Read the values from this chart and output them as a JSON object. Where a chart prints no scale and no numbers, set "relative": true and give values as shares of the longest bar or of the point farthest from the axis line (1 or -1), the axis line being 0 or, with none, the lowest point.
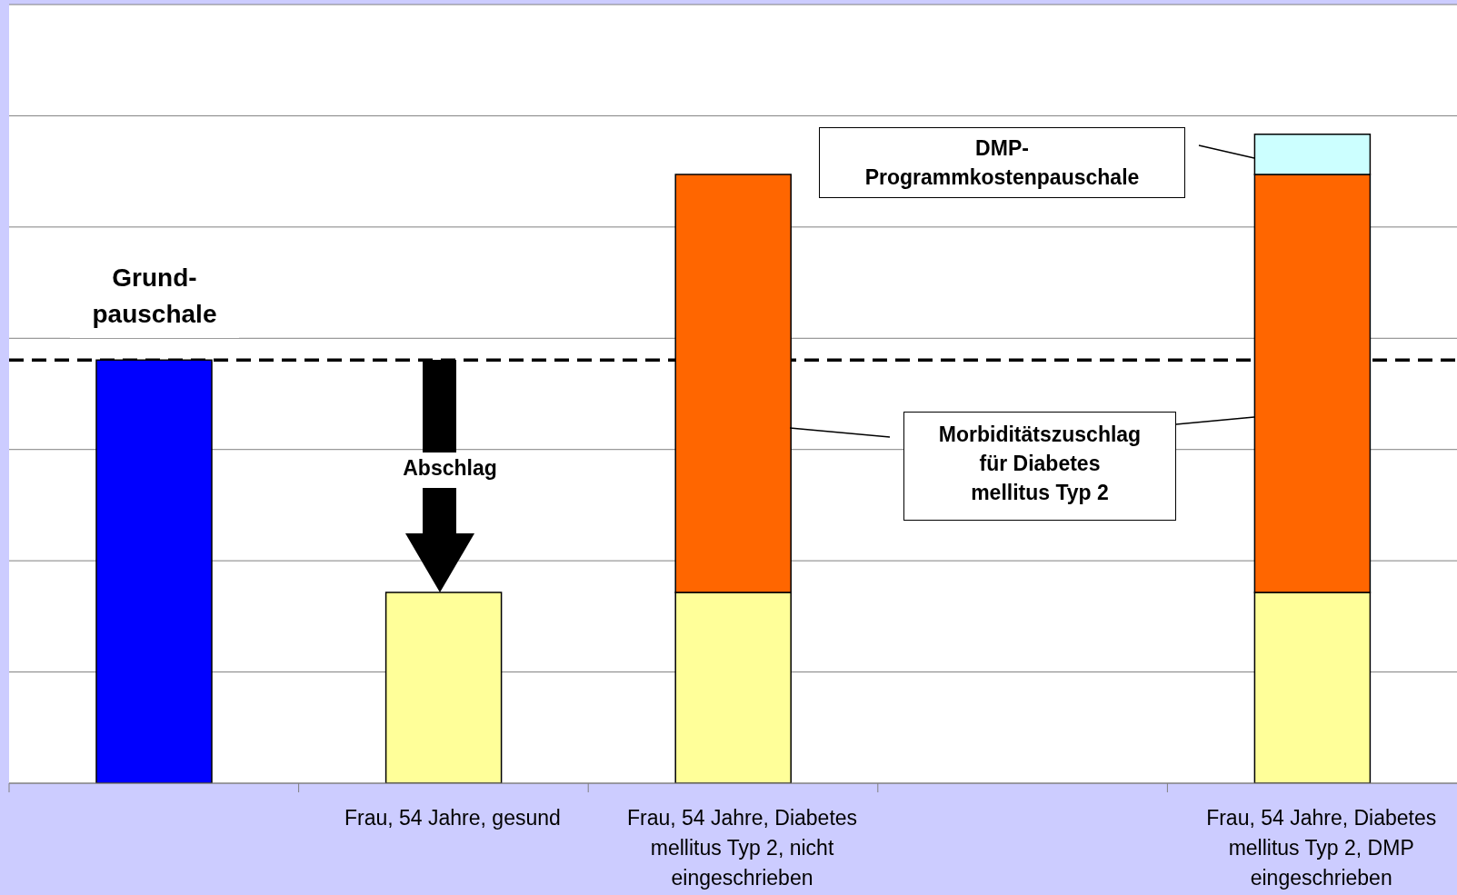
{
  "chart_data": {
    "type": "bar",
    "stacked": true,
    "relative": true,
    "grid": "y",
    "categories": [
      null,
      "Frau, 54 Jahre, gesund",
      "Frau, 54 Jahre, Diabetes mellitus Typ 2, nicht eingeschrieben",
      null,
      "Frau, 54 Jahre, Diabetes mellitus Typ 2, DMP eingeschrieben"
    ],
    "series": [
      {
        "color": "#0000ff",
        "values": [
          0.652,
          null,
          null,
          null,
          null
        ]
      },
      {
        "color": "#ffff99",
        "values": [
          null,
          0.294,
          0.294,
          null,
          0.294
        ]
      },
      {
        "color": "#ff6600",
        "values": [
          null,
          null,
          0.644,
          null,
          0.644
        ]
      },
      {
        "color": "#ccffff",
        "values": [
          null,
          null,
          null,
          null,
          0.062
        ]
      }
    ],
    "ref_lines": [
      {
        "axis": "y",
        "value": 0.652,
        "color": "#000000",
        "line_style": "dashed"
      }
    ],
    "annotations": [
      "Grund-\npauschale",
      "Abschlag",
      "Morbiditätszuschlag\nfür Diabetes\nmellitus Typ 2",
      "DMP-\nProgrammkostenpauschale"
    ]
  }
}
